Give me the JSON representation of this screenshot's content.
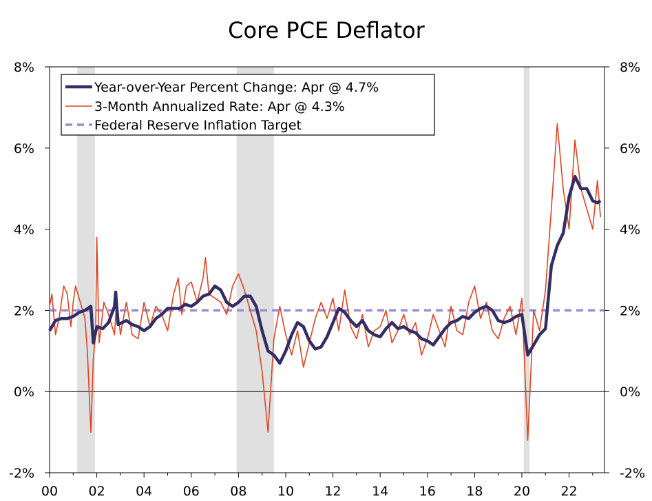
{
  "chart_data": {
    "type": "line",
    "title": "Core PCE Deflator",
    "xlabel": "",
    "ylabel": "",
    "x_start": 2000.0,
    "x_end": 2023.33,
    "xlim": [
      2000.0,
      2023.5
    ],
    "ylim": [
      -2,
      8
    ],
    "y_ticks": [
      -2,
      0,
      2,
      4,
      6,
      8
    ],
    "y_tick_labels": [
      "-2%",
      "0%",
      "2%",
      "4%",
      "6%",
      "8%"
    ],
    "x_ticks": [
      2000,
      2002,
      2004,
      2006,
      2008,
      2010,
      2012,
      2014,
      2016,
      2018,
      2020,
      2022
    ],
    "x_tick_labels": [
      "00",
      "02",
      "04",
      "06",
      "08",
      "10",
      "12",
      "14",
      "16",
      "18",
      "20",
      "22"
    ],
    "legend_position": "top-left",
    "recessions": [
      {
        "start": 2001.17,
        "end": 2001.92
      },
      {
        "start": 2007.92,
        "end": 2009.5
      },
      {
        "start": 2020.08,
        "end": 2020.33
      }
    ],
    "series": [
      {
        "name": "Year-over-Year Percent Change: Apr @ 4.7%",
        "color": "#332d63",
        "style": "solid-thick",
        "points": [
          [
            2000.0,
            1.5
          ],
          [
            2000.25,
            1.75
          ],
          [
            2000.5,
            1.8
          ],
          [
            2000.75,
            1.8
          ],
          [
            2001.0,
            1.85
          ],
          [
            2001.25,
            1.95
          ],
          [
            2001.5,
            2.0
          ],
          [
            2001.75,
            2.1
          ],
          [
            2001.85,
            1.2
          ],
          [
            2002.0,
            1.6
          ],
          [
            2002.25,
            1.55
          ],
          [
            2002.5,
            1.7
          ],
          [
            2002.75,
            2.1
          ],
          [
            2002.8,
            2.45
          ],
          [
            2002.9,
            1.65
          ],
          [
            2003.25,
            1.75
          ],
          [
            2003.5,
            1.65
          ],
          [
            2003.75,
            1.6
          ],
          [
            2004.0,
            1.5
          ],
          [
            2004.25,
            1.6
          ],
          [
            2004.5,
            1.8
          ],
          [
            2004.75,
            1.9
          ],
          [
            2005.0,
            2.05
          ],
          [
            2005.5,
            2.05
          ],
          [
            2005.75,
            2.15
          ],
          [
            2006.0,
            2.1
          ],
          [
            2006.25,
            2.2
          ],
          [
            2006.5,
            2.35
          ],
          [
            2006.75,
            2.4
          ],
          [
            2007.0,
            2.6
          ],
          [
            2007.25,
            2.5
          ],
          [
            2007.5,
            2.2
          ],
          [
            2007.75,
            2.1
          ],
          [
            2008.0,
            2.2
          ],
          [
            2008.25,
            2.35
          ],
          [
            2008.5,
            2.35
          ],
          [
            2008.75,
            2.1
          ],
          [
            2009.0,
            1.5
          ],
          [
            2009.25,
            1.0
          ],
          [
            2009.5,
            0.9
          ],
          [
            2009.75,
            0.7
          ],
          [
            2010.0,
            1.0
          ],
          [
            2010.25,
            1.4
          ],
          [
            2010.5,
            1.7
          ],
          [
            2010.75,
            1.6
          ],
          [
            2011.0,
            1.25
          ],
          [
            2011.25,
            1.05
          ],
          [
            2011.5,
            1.1
          ],
          [
            2011.75,
            1.35
          ],
          [
            2012.0,
            1.7
          ],
          [
            2012.25,
            2.05
          ],
          [
            2012.5,
            1.95
          ],
          [
            2012.75,
            1.75
          ],
          [
            2013.0,
            1.6
          ],
          [
            2013.25,
            1.75
          ],
          [
            2013.5,
            1.5
          ],
          [
            2013.75,
            1.4
          ],
          [
            2014.0,
            1.35
          ],
          [
            2014.25,
            1.55
          ],
          [
            2014.5,
            1.7
          ],
          [
            2014.75,
            1.55
          ],
          [
            2015.0,
            1.6
          ],
          [
            2015.25,
            1.5
          ],
          [
            2015.5,
            1.45
          ],
          [
            2015.75,
            1.3
          ],
          [
            2016.0,
            1.25
          ],
          [
            2016.25,
            1.15
          ],
          [
            2016.5,
            1.35
          ],
          [
            2016.75,
            1.55
          ],
          [
            2017.0,
            1.7
          ],
          [
            2017.25,
            1.75
          ],
          [
            2017.5,
            1.85
          ],
          [
            2017.75,
            1.8
          ],
          [
            2018.0,
            1.95
          ],
          [
            2018.25,
            2.05
          ],
          [
            2018.5,
            2.1
          ],
          [
            2018.75,
            2.0
          ],
          [
            2019.0,
            1.75
          ],
          [
            2019.25,
            1.7
          ],
          [
            2019.5,
            1.75
          ],
          [
            2019.75,
            1.85
          ],
          [
            2020.0,
            1.9
          ],
          [
            2020.25,
            0.9
          ],
          [
            2020.5,
            1.15
          ],
          [
            2020.75,
            1.4
          ],
          [
            2021.0,
            1.55
          ],
          [
            2021.25,
            3.1
          ],
          [
            2021.5,
            3.6
          ],
          [
            2021.75,
            3.9
          ],
          [
            2022.0,
            4.8
          ],
          [
            2022.25,
            5.3
          ],
          [
            2022.5,
            5.0
          ],
          [
            2022.75,
            5.0
          ],
          [
            2023.0,
            4.7
          ],
          [
            2023.2,
            4.65
          ],
          [
            2023.33,
            4.7
          ]
        ]
      },
      {
        "name": "3-Month Annualized Rate: Apr @ 4.3%",
        "color": "#dd4422",
        "style": "solid-thin",
        "points": [
          [
            2000.0,
            2.1
          ],
          [
            2000.1,
            2.4
          ],
          [
            2000.25,
            1.4
          ],
          [
            2000.4,
            1.8
          ],
          [
            2000.6,
            2.6
          ],
          [
            2000.75,
            2.4
          ],
          [
            2000.9,
            1.6
          ],
          [
            2001.0,
            2.2
          ],
          [
            2001.1,
            2.6
          ],
          [
            2001.25,
            2.3
          ],
          [
            2001.5,
            1.8
          ],
          [
            2001.6,
            1.0
          ],
          [
            2001.75,
            -1.0
          ],
          [
            2001.85,
            0.8
          ],
          [
            2001.95,
            1.4
          ],
          [
            2002.0,
            3.8
          ],
          [
            2002.1,
            1.2
          ],
          [
            2002.3,
            2.2
          ],
          [
            2002.5,
            1.9
          ],
          [
            2002.75,
            1.4
          ],
          [
            2002.85,
            2.3
          ],
          [
            2003.0,
            1.4
          ],
          [
            2003.25,
            2.2
          ],
          [
            2003.5,
            1.4
          ],
          [
            2003.75,
            1.3
          ],
          [
            2004.0,
            2.2
          ],
          [
            2004.25,
            1.6
          ],
          [
            2004.5,
            2.1
          ],
          [
            2004.75,
            1.9
          ],
          [
            2005.0,
            1.5
          ],
          [
            2005.25,
            2.4
          ],
          [
            2005.45,
            2.8
          ],
          [
            2005.6,
            1.9
          ],
          [
            2005.8,
            2.6
          ],
          [
            2006.0,
            2.7
          ],
          [
            2006.25,
            2.2
          ],
          [
            2006.5,
            2.8
          ],
          [
            2006.6,
            3.3
          ],
          [
            2006.75,
            2.4
          ],
          [
            2007.0,
            2.3
          ],
          [
            2007.25,
            2.2
          ],
          [
            2007.5,
            1.9
          ],
          [
            2007.75,
            2.6
          ],
          [
            2008.0,
            2.9
          ],
          [
            2008.25,
            2.5
          ],
          [
            2008.5,
            2.0
          ],
          [
            2008.75,
            1.5
          ],
          [
            2009.0,
            0.5
          ],
          [
            2009.25,
            -1.0
          ],
          [
            2009.5,
            1.3
          ],
          [
            2009.75,
            2.1
          ],
          [
            2010.0,
            1.4
          ],
          [
            2010.25,
            0.9
          ],
          [
            2010.5,
            1.5
          ],
          [
            2010.75,
            0.6
          ],
          [
            2011.0,
            1.2
          ],
          [
            2011.25,
            1.8
          ],
          [
            2011.5,
            2.2
          ],
          [
            2011.75,
            1.8
          ],
          [
            2012.0,
            2.3
          ],
          [
            2012.25,
            1.5
          ],
          [
            2012.5,
            2.5
          ],
          [
            2012.75,
            1.6
          ],
          [
            2013.0,
            1.3
          ],
          [
            2013.25,
            1.9
          ],
          [
            2013.5,
            1.1
          ],
          [
            2013.75,
            1.5
          ],
          [
            2014.0,
            1.6
          ],
          [
            2014.25,
            2.0
          ],
          [
            2014.5,
            1.2
          ],
          [
            2014.75,
            1.5
          ],
          [
            2015.0,
            1.9
          ],
          [
            2015.25,
            1.4
          ],
          [
            2015.5,
            1.7
          ],
          [
            2015.75,
            0.9
          ],
          [
            2016.0,
            1.3
          ],
          [
            2016.25,
            1.9
          ],
          [
            2016.5,
            1.5
          ],
          [
            2016.75,
            1.1
          ],
          [
            2017.0,
            2.1
          ],
          [
            2017.25,
            1.5
          ],
          [
            2017.5,
            1.4
          ],
          [
            2017.75,
            2.2
          ],
          [
            2018.0,
            2.6
          ],
          [
            2018.25,
            1.8
          ],
          [
            2018.5,
            2.2
          ],
          [
            2018.75,
            1.5
          ],
          [
            2019.0,
            1.3
          ],
          [
            2019.25,
            1.8
          ],
          [
            2019.5,
            2.1
          ],
          [
            2019.75,
            1.4
          ],
          [
            2020.0,
            2.3
          ],
          [
            2020.25,
            -1.2
          ],
          [
            2020.5,
            2.0
          ],
          [
            2020.75,
            1.5
          ],
          [
            2021.0,
            2.5
          ],
          [
            2021.25,
            4.5
          ],
          [
            2021.5,
            6.6
          ],
          [
            2021.75,
            5.0
          ],
          [
            2022.0,
            4.0
          ],
          [
            2022.25,
            6.2
          ],
          [
            2022.5,
            5.0
          ],
          [
            2022.75,
            4.5
          ],
          [
            2023.0,
            4.0
          ],
          [
            2023.2,
            5.2
          ],
          [
            2023.33,
            4.3
          ]
        ]
      },
      {
        "name": "Federal Reserve Inflation Target",
        "color": "#9b8ad8",
        "style": "dashed",
        "points": [
          [
            2000.0,
            2.0
          ],
          [
            2023.5,
            2.0
          ]
        ]
      }
    ]
  }
}
